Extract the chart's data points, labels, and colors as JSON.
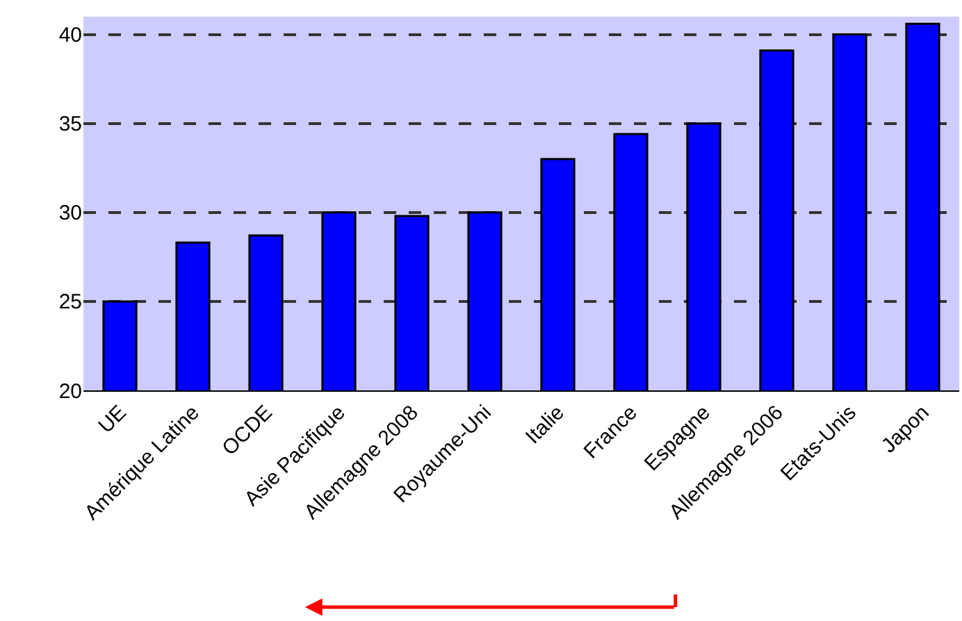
{
  "chart_data": {
    "type": "bar",
    "categories": [
      "UE",
      "Amérique Latine",
      "OCDE",
      "Asie Pacifique",
      "Allemagne 2008",
      "Royaume-Uni",
      "Italie",
      "France",
      "Espagne",
      "Allemagne 2006",
      "Etats-Unis",
      "Japon"
    ],
    "values": [
      25,
      28.3,
      28.7,
      30,
      29.8,
      30,
      33,
      34.4,
      35,
      39.1,
      40,
      40.6
    ],
    "color": "#0000ff",
    "ylim": [
      20,
      41
    ],
    "yticks": [
      20,
      25,
      30,
      35,
      40
    ],
    "grid": "y",
    "legend": false
  }
}
